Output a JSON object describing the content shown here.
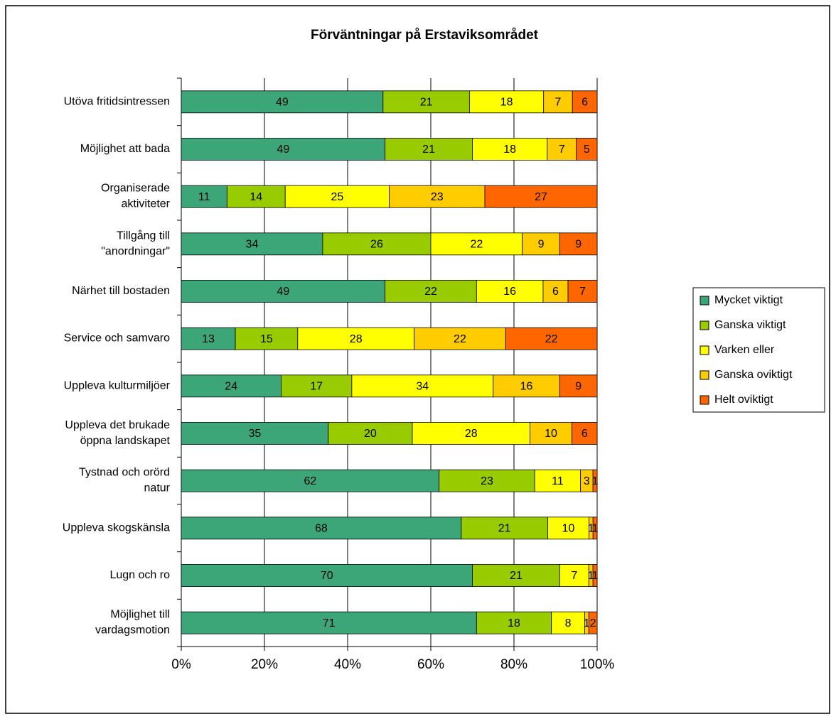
{
  "chart_data": {
    "type": "bar",
    "orientation": "horizontal",
    "stacking": "percent",
    "title": "Förväntningar på Erstaviksområdet",
    "categories": [
      [
        "Utöva fritidsintressen"
      ],
      [
        "Möjlighet att bada"
      ],
      [
        "Organiserade",
        "aktiviteter"
      ],
      [
        "Tillgång till",
        "\"anordningar\""
      ],
      [
        "Närhet till bostaden"
      ],
      [
        "Service och samvaro"
      ],
      [
        "Uppleva kulturmiljöer"
      ],
      [
        "Uppleva det brukade",
        "öppna landskapet"
      ],
      [
        "Tystnad och orörd",
        "natur"
      ],
      [
        "Uppleva skogskänsla"
      ],
      [
        "Lugn och ro"
      ],
      [
        "Möjlighet till",
        "vardagsmotion"
      ]
    ],
    "series": [
      {
        "name": "Mycket viktigt",
        "color": "#3ca679",
        "values": [
          49,
          49,
          11,
          34,
          49,
          13,
          24,
          35,
          62,
          68,
          70,
          71
        ]
      },
      {
        "name": "Ganska viktigt",
        "color": "#99cc00",
        "values": [
          21,
          21,
          14,
          26,
          22,
          15,
          17,
          20,
          23,
          21,
          21,
          18
        ]
      },
      {
        "name": "Varken eller",
        "color": "#ffff00",
        "values": [
          18,
          18,
          25,
          22,
          16,
          28,
          34,
          28,
          11,
          10,
          7,
          8
        ]
      },
      {
        "name": "Ganska oviktigt",
        "color": "#ffcc00",
        "values": [
          7,
          7,
          23,
          9,
          6,
          22,
          16,
          10,
          3,
          1,
          1,
          1
        ]
      },
      {
        "name": "Helt oviktigt",
        "color": "#ff6600",
        "values": [
          6,
          5,
          27,
          9,
          7,
          22,
          9,
          6,
          1,
          1,
          1,
          2
        ]
      }
    ],
    "xlim": [
      0,
      100
    ],
    "xticks": [
      {
        "value": 0,
        "label": "0%"
      },
      {
        "value": 20,
        "label": "20%"
      },
      {
        "value": 40,
        "label": "40%"
      },
      {
        "value": 60,
        "label": "60%"
      },
      {
        "value": 80,
        "label": "80%"
      },
      {
        "value": 100,
        "label": "100%"
      }
    ],
    "grid": true,
    "legend": "right"
  }
}
